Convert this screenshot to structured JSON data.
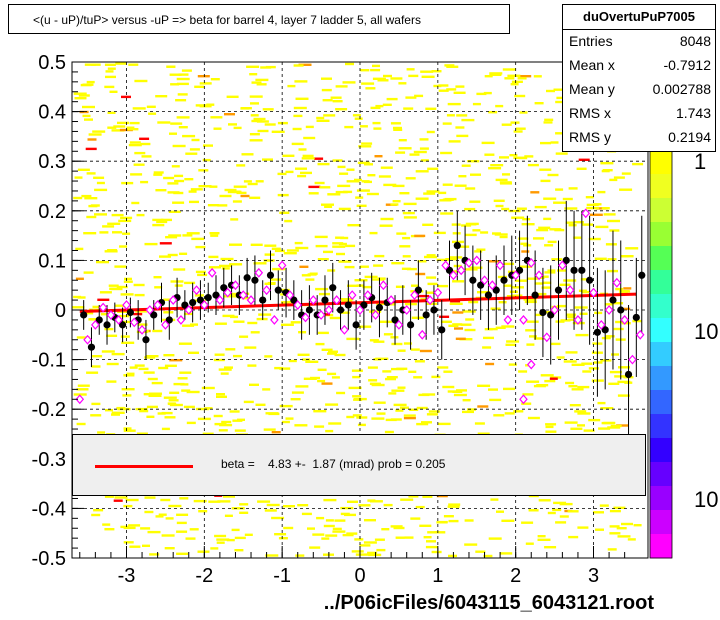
{
  "chart_data": {
    "type": "scatter",
    "title": "<(u - uP)/tuP> versus  -uP => beta for barrel 4, layer 7 ladder 5, all wafers",
    "xlabel": "../P06icFiles/6043115_6043121.root",
    "xlim": [
      -3.7,
      3.7
    ],
    "ylim": [
      -0.5,
      0.5
    ],
    "x_ticks": [
      "-3",
      "-2",
      "-1",
      "0",
      "1",
      "2",
      "3"
    ],
    "x_tick_values": [
      -3,
      -2,
      -1,
      0,
      1,
      2,
      3
    ],
    "y_ticks": [
      "-0.5",
      "-0.4",
      "-0.3",
      "-0.2",
      "-0.1",
      "0",
      "0.1",
      "0.2",
      "0.3",
      "0.4",
      "0.5"
    ],
    "y_tick_values": [
      -0.5,
      -0.4,
      -0.3,
      -0.2,
      -0.1,
      0,
      0.1,
      0.2,
      0.3,
      0.4,
      0.5
    ],
    "grid": true,
    "colorbar_ticks": [
      "1",
      "10",
      "10"
    ],
    "stats": {
      "name": "duOvertuPuP7005",
      "rows": [
        {
          "label": "Entries",
          "value": "8048"
        },
        {
          "label": "Mean x",
          "value": "-0.7912"
        },
        {
          "label": "Mean y",
          "value": "0.002788"
        },
        {
          "label": "RMS x",
          "value": "1.743"
        },
        {
          "label": "RMS y",
          "value": "0.2194"
        }
      ]
    },
    "fit": {
      "label": "beta =    4.83 +-  1.87 (mrad) prob = 0.205",
      "color": "#ff0000",
      "x": [
        -3.6,
        3.55
      ],
      "y": [
        -0.003,
        0.032
      ]
    },
    "series": [
      {
        "marker": "filled-circle",
        "color": "#000000",
        "points": [
          [
            -3.55,
            -0.01,
            0.03
          ],
          [
            -3.45,
            -0.075,
            0.04
          ],
          [
            -3.35,
            -0.02,
            0.03
          ],
          [
            -3.25,
            -0.03,
            0.04
          ],
          [
            -3.15,
            -0.015,
            0.03
          ],
          [
            -3.05,
            -0.03,
            0.035
          ],
          [
            -2.95,
            -0.005,
            0.03
          ],
          [
            -2.85,
            -0.02,
            0.04
          ],
          [
            -2.75,
            -0.06,
            0.04
          ],
          [
            -2.65,
            -0.01,
            0.03
          ],
          [
            -2.55,
            0.015,
            0.04
          ],
          [
            -2.45,
            -0.02,
            0.04
          ],
          [
            -2.35,
            0.025,
            0.04
          ],
          [
            -2.25,
            0.01,
            0.03
          ],
          [
            -2.15,
            0.015,
            0.04
          ],
          [
            -2.05,
            0.02,
            0.04
          ],
          [
            -1.95,
            0.025,
            0.03
          ],
          [
            -1.85,
            0.03,
            0.04
          ],
          [
            -1.75,
            0.045,
            0.04
          ],
          [
            -1.65,
            0.05,
            0.04
          ],
          [
            -1.55,
            0.03,
            0.04
          ],
          [
            -1.45,
            0.065,
            0.04
          ],
          [
            -1.35,
            0.06,
            0.05
          ],
          [
            -1.25,
            0.02,
            0.04
          ],
          [
            -1.15,
            0.07,
            0.05
          ],
          [
            -1.05,
            0.04,
            0.04
          ],
          [
            -0.95,
            0.035,
            0.05
          ],
          [
            -0.85,
            0.02,
            0.04
          ],
          [
            -0.75,
            -0.01,
            0.05
          ],
          [
            -0.65,
            0.0,
            0.05
          ],
          [
            -0.55,
            -0.01,
            0.04
          ],
          [
            -0.45,
            0.02,
            0.05
          ],
          [
            -0.35,
            0.045,
            0.05
          ],
          [
            -0.25,
            0.0,
            0.04
          ],
          [
            -0.15,
            0.01,
            0.05
          ],
          [
            -0.05,
            -0.03,
            0.05
          ],
          [
            0.05,
            0.01,
            0.05
          ],
          [
            0.15,
            0.025,
            0.05
          ],
          [
            0.25,
            0.005,
            0.06
          ],
          [
            0.35,
            0.015,
            0.05
          ],
          [
            0.45,
            -0.02,
            0.05
          ],
          [
            0.55,
            0.0,
            0.05
          ],
          [
            0.65,
            -0.03,
            0.05
          ],
          [
            0.75,
            0.04,
            0.06
          ],
          [
            0.85,
            -0.01,
            0.05
          ],
          [
            0.95,
            0.0,
            0.05
          ],
          [
            1.05,
            -0.04,
            0.06
          ],
          [
            1.15,
            0.08,
            0.06
          ],
          [
            1.25,
            0.13,
            0.07
          ],
          [
            1.35,
            0.1,
            0.07
          ],
          [
            1.45,
            0.06,
            0.07
          ],
          [
            1.55,
            0.05,
            0.07
          ],
          [
            1.65,
            0.03,
            0.07
          ],
          [
            1.75,
            0.04,
            0.07
          ],
          [
            1.85,
            0.06,
            0.07
          ],
          [
            1.95,
            0.07,
            0.08
          ],
          [
            2.05,
            0.08,
            0.08
          ],
          [
            2.15,
            0.1,
            0.09
          ],
          [
            2.25,
            0.03,
            0.09
          ],
          [
            2.35,
            -0.005,
            0.09
          ],
          [
            2.45,
            -0.01,
            0.1
          ],
          [
            2.55,
            0.04,
            0.1
          ],
          [
            2.65,
            0.1,
            0.12
          ],
          [
            2.75,
            0.08,
            0.12
          ],
          [
            2.85,
            0.08,
            0.12
          ],
          [
            2.95,
            0.06,
            0.13
          ],
          [
            3.05,
            -0.045,
            0.13
          ],
          [
            3.15,
            -0.04,
            0.12
          ],
          [
            3.25,
            0.02,
            0.14
          ],
          [
            3.35,
            0.0,
            0.14
          ],
          [
            3.45,
            -0.13,
            0.14
          ],
          [
            3.55,
            -0.015,
            0.12
          ],
          [
            3.62,
            0.07,
            0.12
          ]
        ]
      },
      {
        "marker": "open-diamond",
        "color": "#ff00ff",
        "points": [
          [
            -3.6,
            -0.18
          ],
          [
            -3.5,
            -0.06
          ],
          [
            -3.4,
            -0.03
          ],
          [
            -3.3,
            0.005
          ],
          [
            -3.2,
            -0.01
          ],
          [
            -3.1,
            -0.02
          ],
          [
            -3.0,
            0.01
          ],
          [
            -2.9,
            -0.025
          ],
          [
            -2.8,
            -0.04
          ],
          [
            -2.7,
            0.0
          ],
          [
            -2.6,
            0.01
          ],
          [
            -2.5,
            -0.03
          ],
          [
            -2.4,
            0.02
          ],
          [
            -2.3,
            -0.02
          ],
          [
            -2.2,
            0.0
          ],
          [
            -2.1,
            0.04
          ],
          [
            -2.0,
            0.01
          ],
          [
            -1.9,
            0.075
          ],
          [
            -1.8,
            0.02
          ],
          [
            -1.7,
            0.035
          ],
          [
            -1.6,
            0.05
          ],
          [
            -1.5,
            0.03
          ],
          [
            -1.4,
            0.02
          ],
          [
            -1.3,
            0.075
          ],
          [
            -1.2,
            0.04
          ],
          [
            -1.1,
            -0.02
          ],
          [
            -1.0,
            0.09
          ],
          [
            -0.9,
            0.03
          ],
          [
            -0.8,
            0.01
          ],
          [
            -0.7,
            -0.015
          ],
          [
            -0.6,
            0.02
          ],
          [
            -0.5,
            -0.01
          ],
          [
            -0.4,
            0.0
          ],
          [
            -0.3,
            0.02
          ],
          [
            -0.2,
            -0.04
          ],
          [
            -0.1,
            0.03
          ],
          [
            0.0,
            0.0
          ],
          [
            0.1,
            0.03
          ],
          [
            0.2,
            -0.01
          ],
          [
            0.3,
            0.05
          ],
          [
            0.4,
            0.02
          ],
          [
            0.5,
            -0.03
          ],
          [
            0.6,
            0.0
          ],
          [
            0.7,
            0.03
          ],
          [
            0.8,
            -0.05
          ],
          [
            0.9,
            0.02
          ],
          [
            1.0,
            0.035
          ],
          [
            1.1,
            0.09
          ],
          [
            1.2,
            0.07
          ],
          [
            1.3,
            0.08
          ],
          [
            1.4,
            0.095
          ],
          [
            1.5,
            0.1
          ],
          [
            1.6,
            0.06
          ],
          [
            1.7,
            0.05
          ],
          [
            1.8,
            0.09
          ],
          [
            1.9,
            -0.02
          ],
          [
            2.0,
            0.07
          ],
          [
            2.1,
            -0.02
          ],
          [
            2.2,
            0.095
          ],
          [
            2.3,
            0.07
          ],
          [
            2.4,
            -0.055
          ],
          [
            2.5,
            0.0
          ],
          [
            2.6,
            0.09
          ],
          [
            2.7,
            0.04
          ],
          [
            2.8,
            -0.02
          ],
          [
            2.9,
            0.195
          ],
          [
            3.0,
            0.035
          ],
          [
            3.1,
            -0.03
          ],
          [
            3.2,
            0.0
          ],
          [
            3.3,
            0.055
          ],
          [
            3.4,
            -0.02
          ],
          [
            3.5,
            -0.1
          ],
          [
            3.6,
            -0.05
          ],
          [
            2.1,
            -0.18
          ],
          [
            2.2,
            -0.11
          ]
        ]
      }
    ]
  }
}
